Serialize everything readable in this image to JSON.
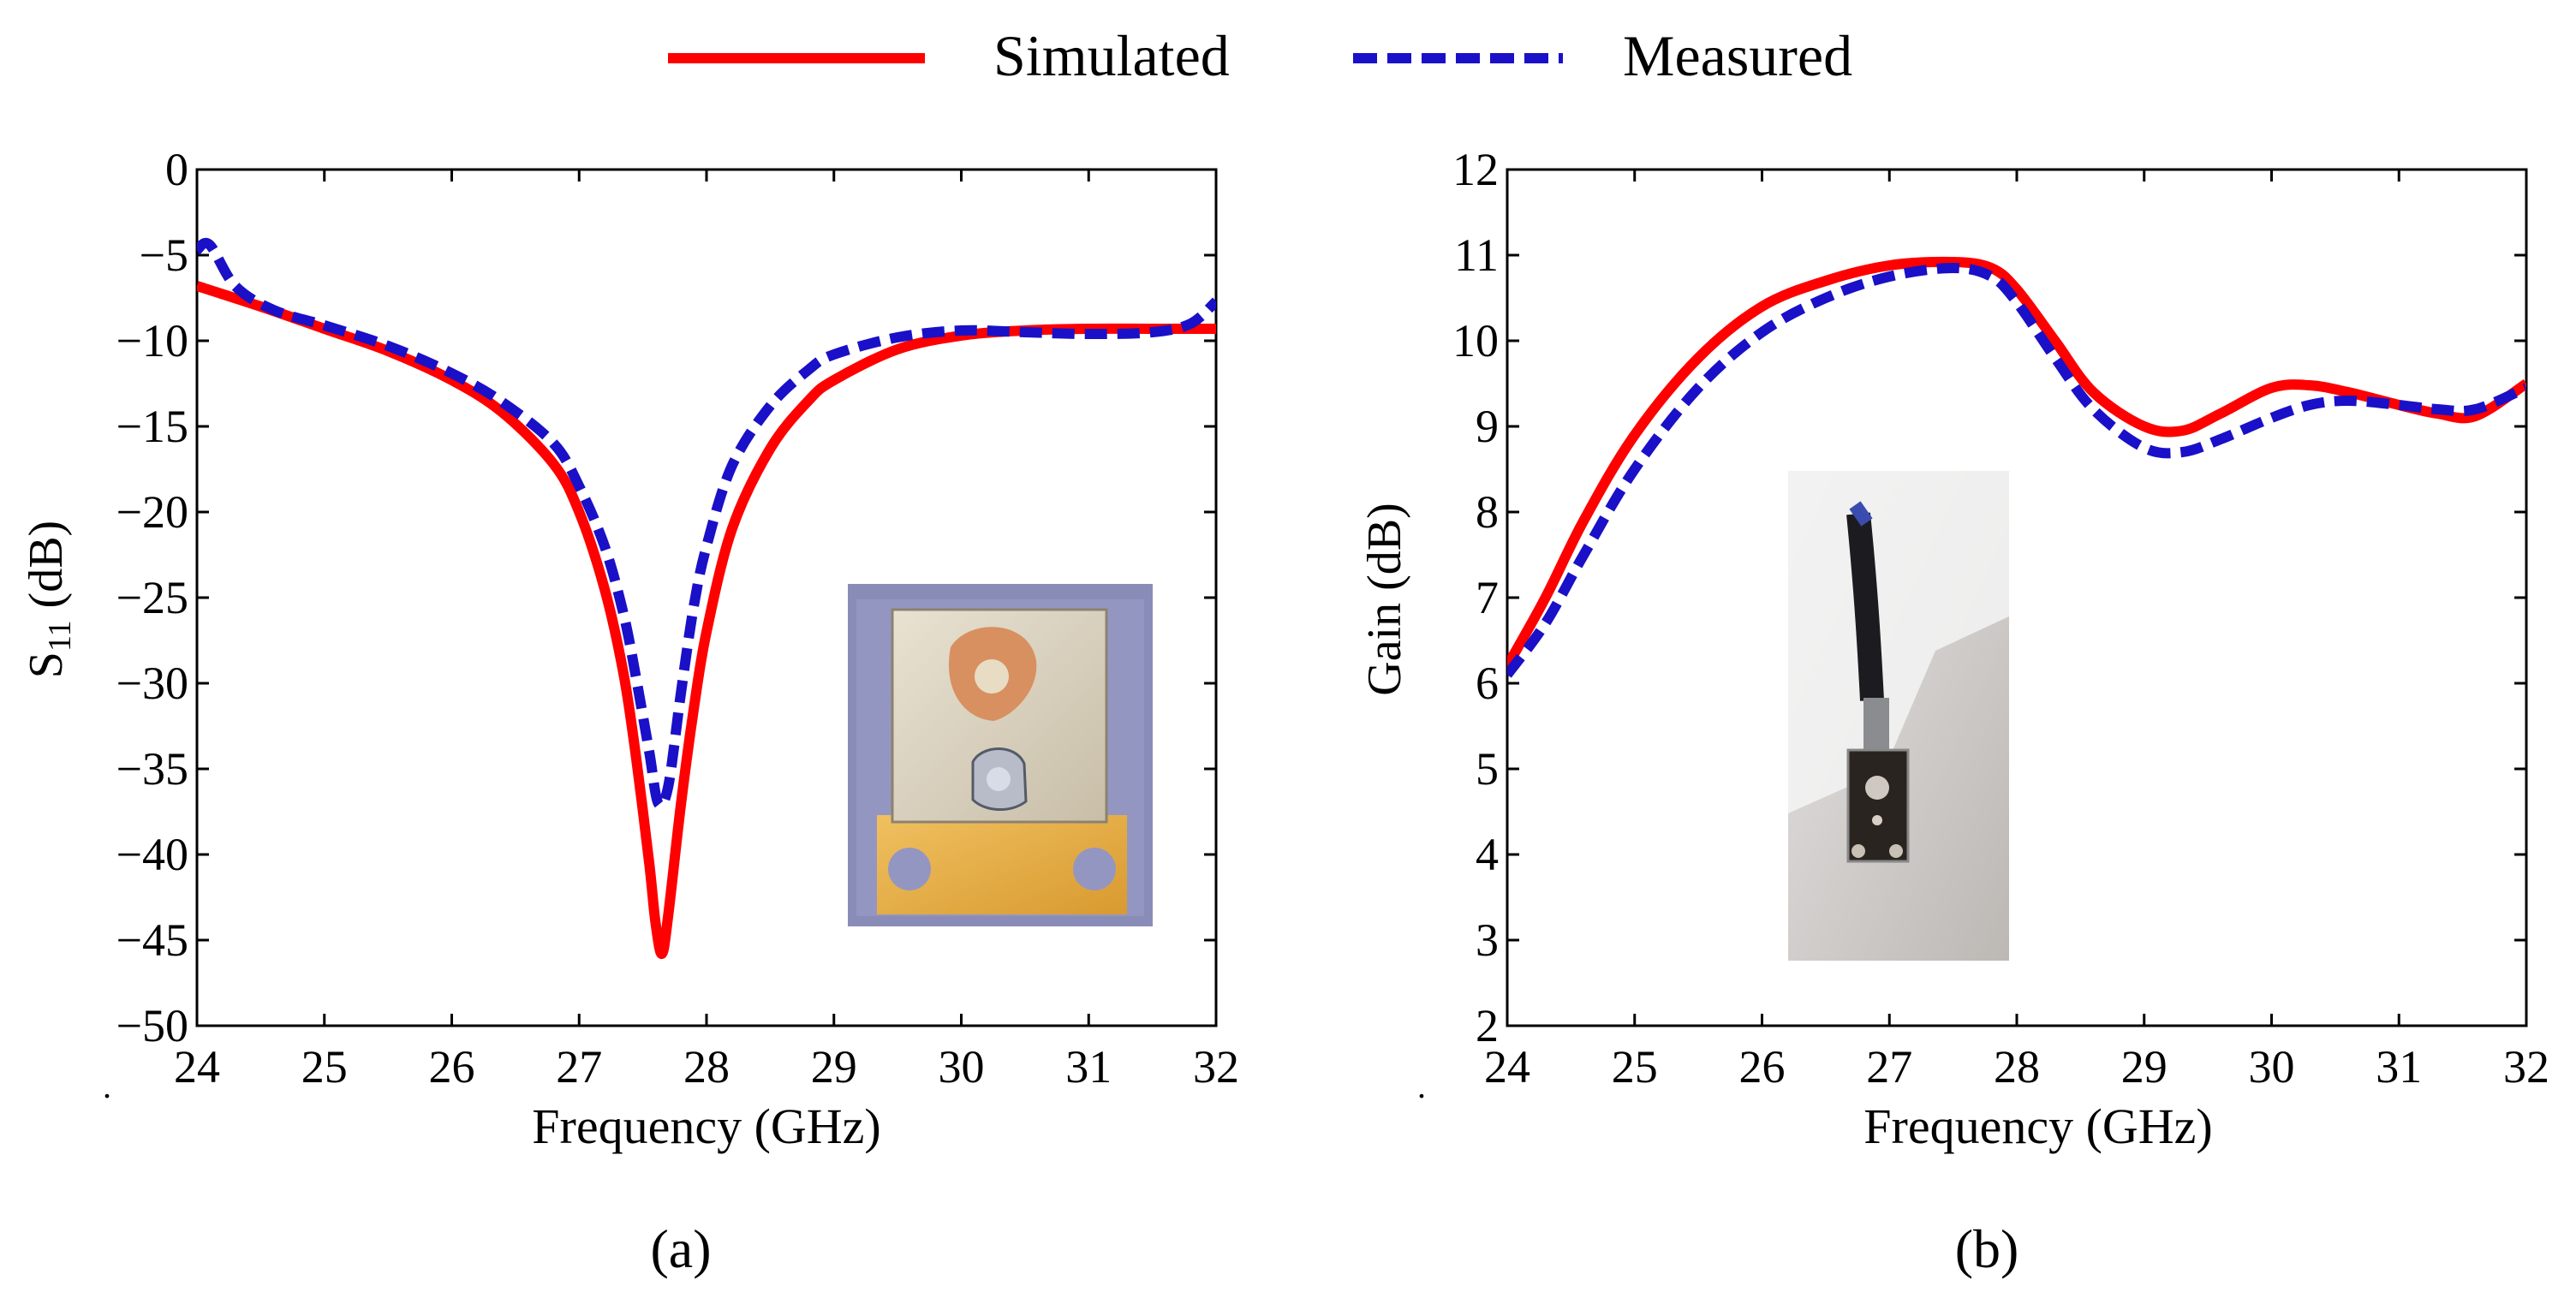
{
  "legend": {
    "items": [
      {
        "label": "Simulated",
        "color": "#ff0000",
        "dash": "solid"
      },
      {
        "label": "Measured",
        "color": "#1a10c8",
        "dash": "dashed"
      }
    ]
  },
  "colors": {
    "simulated": "#ff0000",
    "measured": "#1a10c8",
    "axis": "#000000"
  },
  "chart_data": [
    {
      "type": "line",
      "panel_label": "(a)",
      "xlabel": "Frequency (GHz)",
      "ylabel_main": "S",
      "ylabel_sub": "11",
      "ylabel_rest": " (dB)",
      "xlim": [
        24,
        32
      ],
      "ylim": [
        -50,
        0
      ],
      "xticks": [
        24,
        25,
        26,
        27,
        28,
        29,
        30,
        31,
        32
      ],
      "yticks": [
        0,
        -5,
        -10,
        -15,
        -20,
        -25,
        -30,
        -35,
        -40,
        -45,
        -50
      ],
      "yticklabels": [
        "0",
        "−5",
        "−10",
        "−15",
        "−20",
        "−25",
        "−30",
        "−35",
        "−40",
        "−45",
        "−50"
      ],
      "inset_description": "photo-inset-antenna-top",
      "series": [
        {
          "name": "Simulated",
          "x": [
            24,
            24.5,
            25,
            25.5,
            26,
            26.4,
            26.8,
            27.0,
            27.2,
            27.35,
            27.45,
            27.55,
            27.6,
            27.65,
            27.7,
            27.8,
            27.9,
            28.0,
            28.2,
            28.5,
            28.8,
            29.0,
            29.5,
            30.0,
            30.5,
            31.0,
            31.5,
            32.0
          ],
          "y": [
            -6.8,
            -8.0,
            -9.3,
            -10.6,
            -12.3,
            -14.2,
            -17.2,
            -20.0,
            -24.5,
            -29.5,
            -34.5,
            -40.5,
            -44.0,
            -45.8,
            -43.5,
            -37.0,
            -31.5,
            -27.0,
            -21.0,
            -16.3,
            -13.5,
            -12.3,
            -10.5,
            -9.7,
            -9.4,
            -9.3,
            -9.3,
            -9.3
          ]
        },
        {
          "name": "Measured",
          "x": [
            24,
            24.1,
            24.3,
            24.6,
            25,
            25.5,
            26,
            26.4,
            26.8,
            27.0,
            27.2,
            27.35,
            27.45,
            27.55,
            27.62,
            27.7,
            27.8,
            27.9,
            28.0,
            28.2,
            28.5,
            28.8,
            29.0,
            29.5,
            30.0,
            30.5,
            31.0,
            31.5,
            31.8,
            32.0
          ],
          "y": [
            -4.7,
            -4.4,
            -6.8,
            -8.2,
            -9.1,
            -10.3,
            -11.9,
            -13.6,
            -16.0,
            -18.5,
            -22.0,
            -26.0,
            -29.8,
            -34.0,
            -37.0,
            -36.0,
            -30.5,
            -25.5,
            -22.0,
            -17.3,
            -13.8,
            -11.7,
            -10.8,
            -9.8,
            -9.4,
            -9.5,
            -9.6,
            -9.5,
            -9.0,
            -7.7
          ]
        }
      ]
    },
    {
      "type": "line",
      "panel_label": "(b)",
      "xlabel": "Frequency (GHz)",
      "ylabel_main": "Gain (dB)",
      "xlim": [
        24,
        32
      ],
      "ylim": [
        2,
        12
      ],
      "xticks": [
        24,
        25,
        26,
        27,
        28,
        29,
        30,
        31,
        32
      ],
      "yticks": [
        2,
        3,
        4,
        5,
        6,
        7,
        8,
        9,
        10,
        11,
        12
      ],
      "yticklabels": [
        "2",
        "3",
        "4",
        "5",
        "6",
        "7",
        "8",
        "9",
        "10",
        "11",
        "12"
      ],
      "inset_description": "photo-inset-measurement-setup",
      "series": [
        {
          "name": "Simulated",
          "x": [
            24,
            24.3,
            24.6,
            25,
            25.5,
            26,
            26.5,
            27,
            27.5,
            27.8,
            28.0,
            28.3,
            28.6,
            29.0,
            29.3,
            29.6,
            30.0,
            30.3,
            30.6,
            31.0,
            31.3,
            31.6,
            32.0
          ],
          "y": [
            6.2,
            7.0,
            7.9,
            8.9,
            9.8,
            10.4,
            10.7,
            10.88,
            10.92,
            10.85,
            10.6,
            10.0,
            9.4,
            9.0,
            8.95,
            9.15,
            9.45,
            9.48,
            9.4,
            9.25,
            9.15,
            9.12,
            9.5
          ]
        },
        {
          "name": "Measured",
          "x": [
            24,
            24.3,
            24.6,
            25,
            25.5,
            26,
            26.5,
            27,
            27.5,
            27.8,
            28.0,
            28.3,
            28.6,
            29.0,
            29.3,
            29.6,
            30.0,
            30.3,
            30.6,
            31.0,
            31.3,
            31.6,
            32.0
          ],
          "y": [
            6.1,
            6.7,
            7.5,
            8.5,
            9.45,
            10.1,
            10.5,
            10.75,
            10.85,
            10.75,
            10.45,
            9.8,
            9.2,
            8.75,
            8.7,
            8.85,
            9.1,
            9.25,
            9.3,
            9.25,
            9.2,
            9.2,
            9.45
          ]
        }
      ]
    }
  ]
}
